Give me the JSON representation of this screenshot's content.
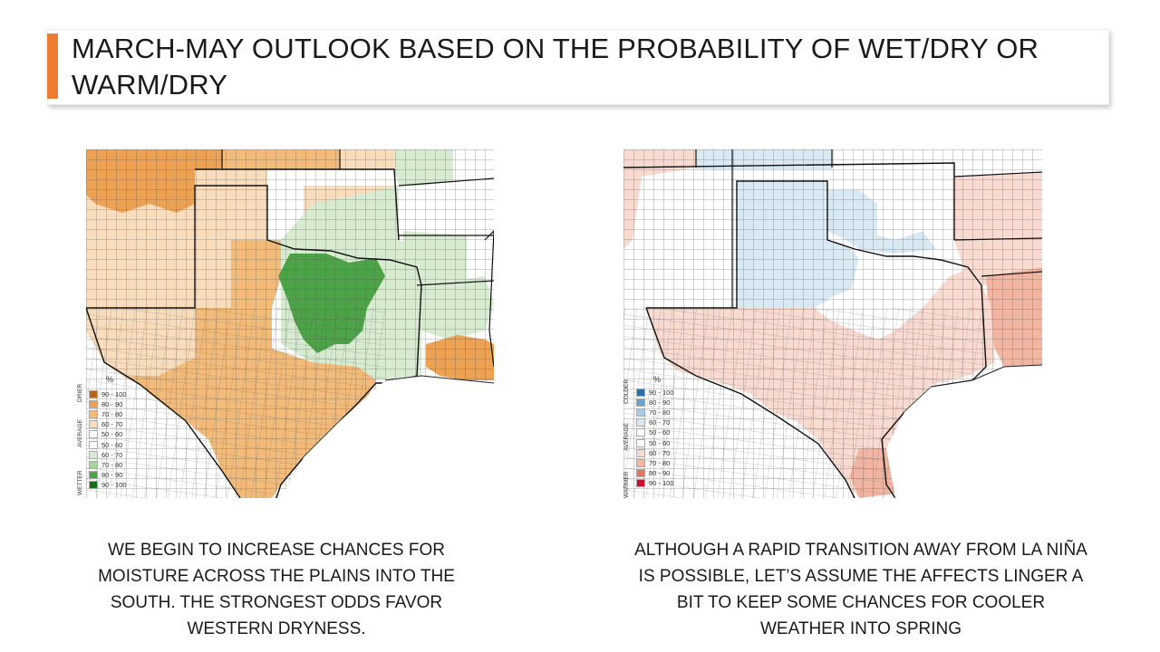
{
  "slide": {
    "title": "MARCH-MAY OUTLOOK BASED ON THE PROBABILITY OF WET/DRY OR WARM/DRY",
    "accent_color": "#ee7d31"
  },
  "left_map": {
    "name": "precipitation outlook map",
    "legend": {
      "unit": "%",
      "top_label": "DRIER",
      "mid_label": "AVERAGE",
      "bottom_label": "WETTER",
      "entries": [
        {
          "label": "90 - 100",
          "color": "#b5661a"
        },
        {
          "label": "80 - 90",
          "color": "#eda153"
        },
        {
          "label": "70 - 80",
          "color": "#f3bb79"
        },
        {
          "label": "60 - 70",
          "color": "#f8dcbc"
        },
        {
          "label": "50 - 60",
          "color": "#ffffff"
        },
        {
          "label": "50 - 60",
          "color": "#ffffff"
        },
        {
          "label": "60 - 70",
          "color": "#d6ebcf"
        },
        {
          "label": "70 - 80",
          "color": "#a7d39c"
        },
        {
          "label": "80 - 90",
          "color": "#4da347"
        },
        {
          "label": "90 - 100",
          "color": "#1c6b1c"
        }
      ]
    },
    "caption": "WE BEGIN TO INCREASE CHANCES FOR MOISTURE ACROSS THE PLAINS INTO THE SOUTH. THE STRONGEST ODDS FAVOR WESTERN DRYNESS."
  },
  "right_map": {
    "name": "temperature outlook map",
    "legend": {
      "unit": "%",
      "top_label": "COLDER",
      "mid_label": "AVERAGE",
      "bottom_label": "WARMER",
      "entries": [
        {
          "label": "90 - 100",
          "color": "#2b6fa8"
        },
        {
          "label": "80 - 90",
          "color": "#6aa2cc"
        },
        {
          "label": "70 - 80",
          "color": "#a9cbe3"
        },
        {
          "label": "60 - 70",
          "color": "#d9e9f4"
        },
        {
          "label": "50 - 60",
          "color": "#ffffff"
        },
        {
          "label": "50 - 60",
          "color": "#ffffff"
        },
        {
          "label": "60 - 70",
          "color": "#f9dad0"
        },
        {
          "label": "70 - 80",
          "color": "#f2b5a1"
        },
        {
          "label": "80 - 90",
          "color": "#e57662"
        },
        {
          "label": "90 - 100",
          "color": "#c8102e"
        }
      ]
    },
    "caption": "ALTHOUGH A RAPID TRANSITION AWAY FROM LA NIÑA IS POSSIBLE, LET’S ASSUME THE AFFECTS LINGER A BIT TO KEEP SOME CHANCES FOR COOLER WEATHER INTO SPRING"
  }
}
